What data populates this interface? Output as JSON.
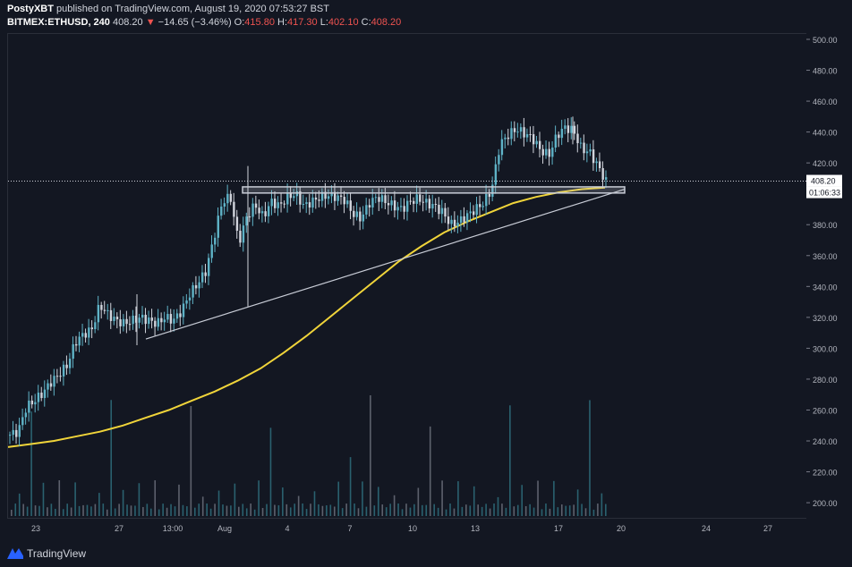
{
  "header": {
    "author": "PostyXBT",
    "published_text": "published on TradingView.com, August 19, 2020 07:53:27 BST",
    "symbol": "BITMEX:ETHUSD, 240",
    "last": "408.20",
    "change": "−14.65 (−3.46%)",
    "o_label": "O:",
    "o_value": "415.80",
    "h_label": "H:",
    "h_value": "417.30",
    "l_label": "L:",
    "l_value": "402.10",
    "c_label": "C:",
    "c_value": "408.20"
  },
  "price_scale": {
    "labels": [
      "500.00",
      "480.00",
      "460.00",
      "440.00",
      "420.00",
      "400.00",
      "380.00",
      "360.00",
      "340.00",
      "320.00",
      "300.00",
      "280.00",
      "260.00",
      "240.00",
      "220.00",
      "200.00"
    ],
    "current_price": "408.20",
    "countdown": "01:06:33"
  },
  "time_axis": {
    "labels": [
      "23",
      "27",
      "13:00",
      "Aug",
      "4",
      "7",
      "10",
      "13",
      "17",
      "20",
      "24",
      "27"
    ]
  },
  "footer": {
    "brand": "TradingView"
  },
  "colors": {
    "background": "#131722",
    "candle": "#5fb3c7",
    "ma": "#f0d43a",
    "drawing": "#c8ccd6"
  },
  "chart_data": {
    "type": "candlestick",
    "symbol": "BITMEX:ETHUSD",
    "interval": "240",
    "ylim": [
      190,
      505
    ],
    "price_ticks": [
      500,
      480,
      460,
      440,
      420,
      400,
      380,
      360,
      340,
      320,
      300,
      280,
      260,
      240,
      220,
      200
    ],
    "x_ticks": [
      "23",
      "27",
      "13:00",
      "Aug",
      "4",
      "7",
      "10",
      "13",
      "17",
      "20",
      "24",
      "27"
    ],
    "close_path": [
      244,
      246,
      262,
      266,
      271,
      278,
      283,
      289,
      304,
      309,
      312,
      328,
      322,
      318,
      316,
      318,
      320,
      318,
      316,
      320,
      318,
      324,
      335,
      342,
      350,
      372,
      395,
      398,
      368,
      385,
      393,
      385,
      395,
      392,
      398,
      400,
      392,
      395,
      398,
      399,
      398,
      396,
      387,
      384,
      394,
      398,
      395,
      392,
      390,
      395,
      397,
      394,
      392,
      388,
      380,
      382,
      386,
      390,
      394,
      403,
      432,
      438,
      442,
      439,
      436,
      428,
      425,
      438,
      443,
      441,
      429,
      427,
      418,
      408
    ],
    "ma_path": [
      236,
      238,
      240,
      243,
      246,
      250,
      255,
      260,
      266,
      272,
      279,
      287,
      297,
      308,
      320,
      332,
      344,
      356,
      366,
      375,
      382,
      388,
      394,
      398,
      401,
      403,
      404
    ],
    "resistance_zone": [
      400.5,
      404.5
    ],
    "volume_levels": [
      "low",
      "low",
      "medium",
      "low",
      "low",
      "high",
      "low",
      "low",
      "medium",
      "low",
      "low",
      "low",
      "medium",
      "low",
      "low",
      "low",
      "medium",
      "low",
      "low",
      "low"
    ]
  }
}
